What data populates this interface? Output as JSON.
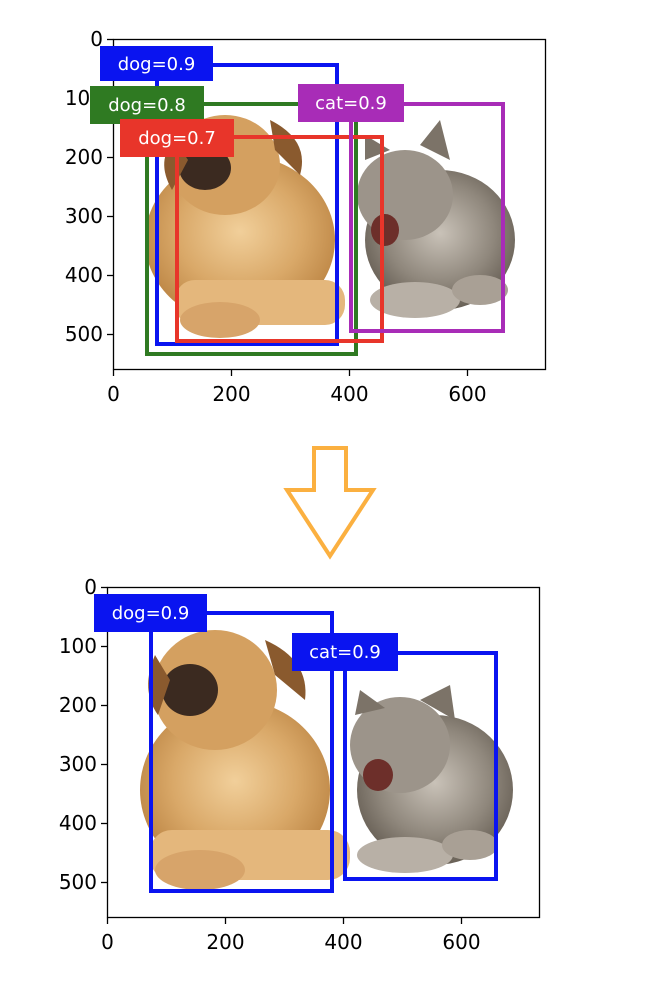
{
  "panels": [
    {
      "id": "before-nms",
      "image_description_subjects": [
        "dog",
        "cat"
      ],
      "x_ticks": [
        "0",
        "200",
        "400",
        "600"
      ],
      "y_ticks": [
        "0",
        "100",
        "200",
        "300",
        "400",
        "500"
      ],
      "boxes": [
        {
          "label": "dog=0.9",
          "color": "#0a14f0"
        },
        {
          "label": "dog=0.8",
          "color": "#2f7a22"
        },
        {
          "label": "dog=0.7",
          "color": "#e8352a"
        },
        {
          "label": "cat=0.9",
          "color": "#a82cb7"
        }
      ]
    },
    {
      "id": "after-nms",
      "x_ticks": [
        "0",
        "200",
        "400",
        "600"
      ],
      "y_ticks": [
        "0",
        "100",
        "200",
        "300",
        "400",
        "500"
      ],
      "boxes": [
        {
          "label": "dog=0.9",
          "color": "#0a14f0"
        },
        {
          "label": "cat=0.9",
          "color": "#0a14f0"
        }
      ]
    }
  ],
  "arrow": {
    "direction": "down",
    "color": "#fbb040"
  }
}
